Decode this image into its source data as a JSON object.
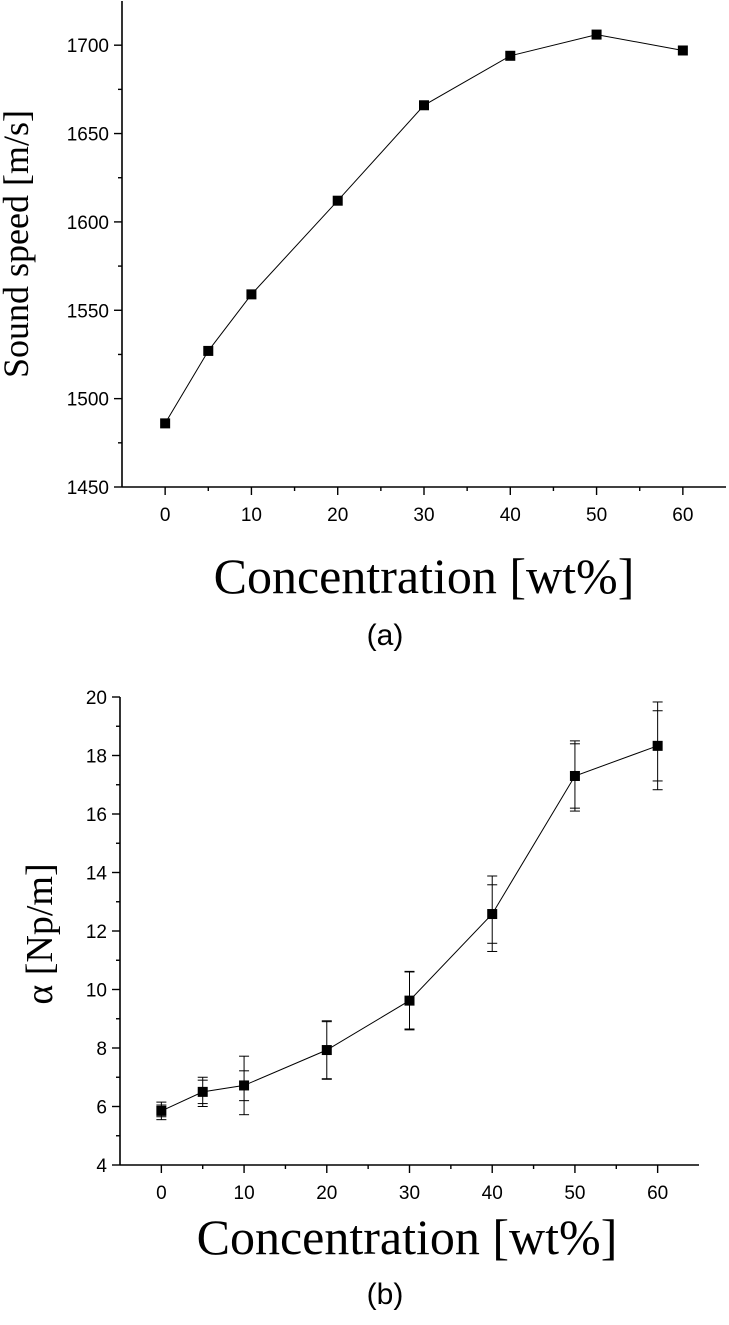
{
  "chart_data": [
    {
      "type": "line",
      "panel_label": "(a)",
      "title": "",
      "xlabel": "Concentration [wt%]",
      "ylabel": "Sound speed [m/s]",
      "xlim": [
        -5,
        65
      ],
      "ylim": [
        1450,
        1725
      ],
      "xticks": [
        0,
        10,
        20,
        30,
        40,
        50,
        60
      ],
      "yticks": [
        1450,
        1500,
        1550,
        1600,
        1650,
        1700
      ],
      "x_minor_ticks": [
        5,
        15,
        25,
        35,
        45,
        55
      ],
      "y_minor_ticks": [
        1475,
        1525,
        1575,
        1625,
        1675
      ],
      "grid": false,
      "marker": "square",
      "series": [
        {
          "x": [
            0,
            5,
            10,
            20,
            30,
            40,
            50,
            60
          ],
          "y": [
            1486,
            1527,
            1559,
            1612,
            1666,
            1694,
            1706,
            1697
          ]
        }
      ]
    },
    {
      "type": "line",
      "panel_label": "(b)",
      "title": "",
      "xlabel": "Concentration [wt%]",
      "ylabel": "α [Np/m]",
      "xlim": [
        -5,
        65
      ],
      "ylim": [
        4,
        20
      ],
      "xticks": [
        0,
        10,
        20,
        30,
        40,
        50,
        60
      ],
      "yticks": [
        4,
        6,
        8,
        10,
        12,
        14,
        16,
        18,
        20
      ],
      "x_minor_ticks": [
        5,
        15,
        25,
        35,
        45,
        55
      ],
      "y_minor_ticks": [
        5,
        7,
        9,
        11,
        13,
        15,
        17,
        19
      ],
      "grid": false,
      "marker": "square",
      "series": [
        {
          "x": [
            0,
            5,
            10,
            20,
            30,
            40,
            50,
            60
          ],
          "y": [
            5.85,
            6.5,
            6.72,
            7.93,
            9.62,
            12.58,
            17.3,
            18.33
          ],
          "error_bars": [
            {
              "outer": [
                5.55,
                6.15
              ],
              "inner": [
                5.65,
                6.05
              ]
            },
            {
              "outer": [
                6.0,
                7.0
              ],
              "inner": [
                6.1,
                6.9
              ]
            },
            {
              "outer": [
                5.72,
                7.72
              ],
              "inner": [
                6.2,
                7.22
              ]
            },
            {
              "outer": [
                6.93,
                8.93
              ],
              "inner": [
                6.95,
                8.9
              ]
            },
            {
              "outer": [
                8.62,
                10.62
              ],
              "inner": [
                8.65,
                10.6
              ]
            },
            {
              "outer": [
                11.3,
                13.88
              ],
              "inner": [
                11.58,
                13.58
              ]
            },
            {
              "outer": [
                16.1,
                18.5
              ],
              "inner": [
                16.2,
                18.4
              ]
            },
            {
              "outer": [
                16.83,
                19.83
              ],
              "inner": [
                17.13,
                19.53
              ]
            }
          ]
        }
      ]
    }
  ]
}
